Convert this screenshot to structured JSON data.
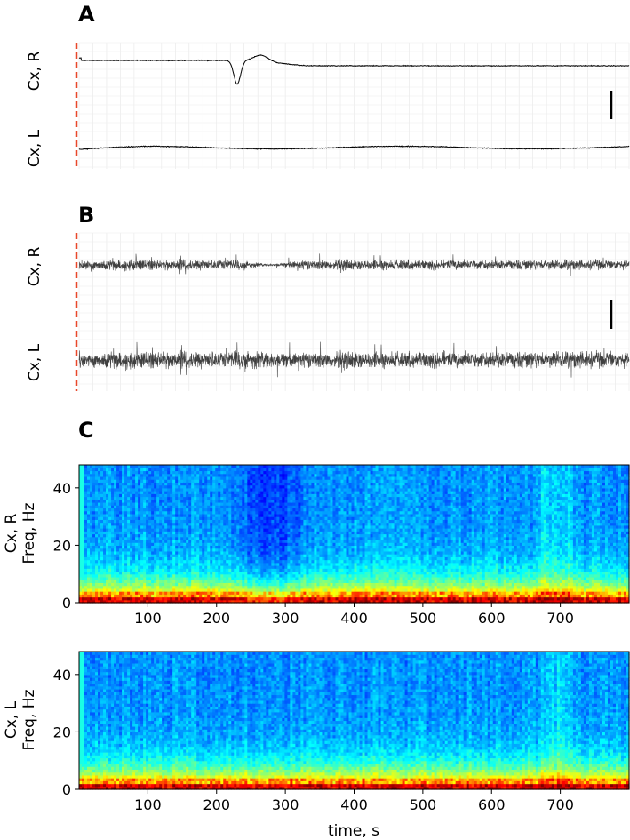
{
  "panels": {
    "A": {
      "letter": "A",
      "channels": [
        {
          "label": "Cx, R",
          "kind": "slow",
          "dip_time": 230,
          "dip_depth": 0.95,
          "step_after": 330
        },
        {
          "label": "Cx, L",
          "kind": "slow_flat"
        }
      ],
      "trace_color": "#000000",
      "marker_color": "#e8482b"
    },
    "B": {
      "letter": "B",
      "channels": [
        {
          "label": "Cx, R",
          "kind": "noise",
          "suppressed_range": [
            220,
            330
          ],
          "suppression_level": 0.25
        },
        {
          "label": "Cx, L",
          "kind": "noise"
        }
      ],
      "trace_color": "#000000",
      "marker_color": "#e8482b"
    },
    "C": {
      "letter": "C"
    }
  },
  "chart_data": [
    {
      "type": "line",
      "panel": "A",
      "series": [
        {
          "name": "Cx, R",
          "description_values": "baseline with negative deflection near 230 s, recovering by ~330 s"
        },
        {
          "name": "Cx, L",
          "description_values": "flat baseline"
        }
      ],
      "x_range": [
        0,
        800
      ]
    },
    {
      "type": "line",
      "panel": "B",
      "series": [
        {
          "name": "Cx, R",
          "amplitude_profile": "reduced between ~220 s and ~330 s"
        },
        {
          "name": "Cx, L",
          "amplitude_profile": "constant"
        }
      ],
      "x_range": [
        0,
        800
      ]
    },
    {
      "type": "heatmap",
      "panel": "C",
      "title": "",
      "channel_label": "Cx, R",
      "ylabel": "Freq, Hz",
      "xlim": [
        0,
        800
      ],
      "ylim": [
        0,
        48
      ],
      "yticks": [
        0,
        20,
        40
      ],
      "xticks": [
        100,
        200,
        300,
        400,
        500,
        600,
        700
      ],
      "low_power_range_s": [
        220,
        340
      ],
      "artifact_time_s": 670,
      "colormap": "jet"
    },
    {
      "type": "heatmap",
      "panel": "C",
      "title": "",
      "channel_label": "Cx, L",
      "ylabel": "Freq, Hz",
      "xlabel": "time, s",
      "xlim": [
        0,
        800
      ],
      "ylim": [
        0,
        48
      ],
      "yticks": [
        0,
        20,
        40
      ],
      "xticks": [
        100,
        200,
        300,
        400,
        500,
        600,
        700
      ],
      "artifact_time_s": 670,
      "colormap": "jet"
    }
  ]
}
